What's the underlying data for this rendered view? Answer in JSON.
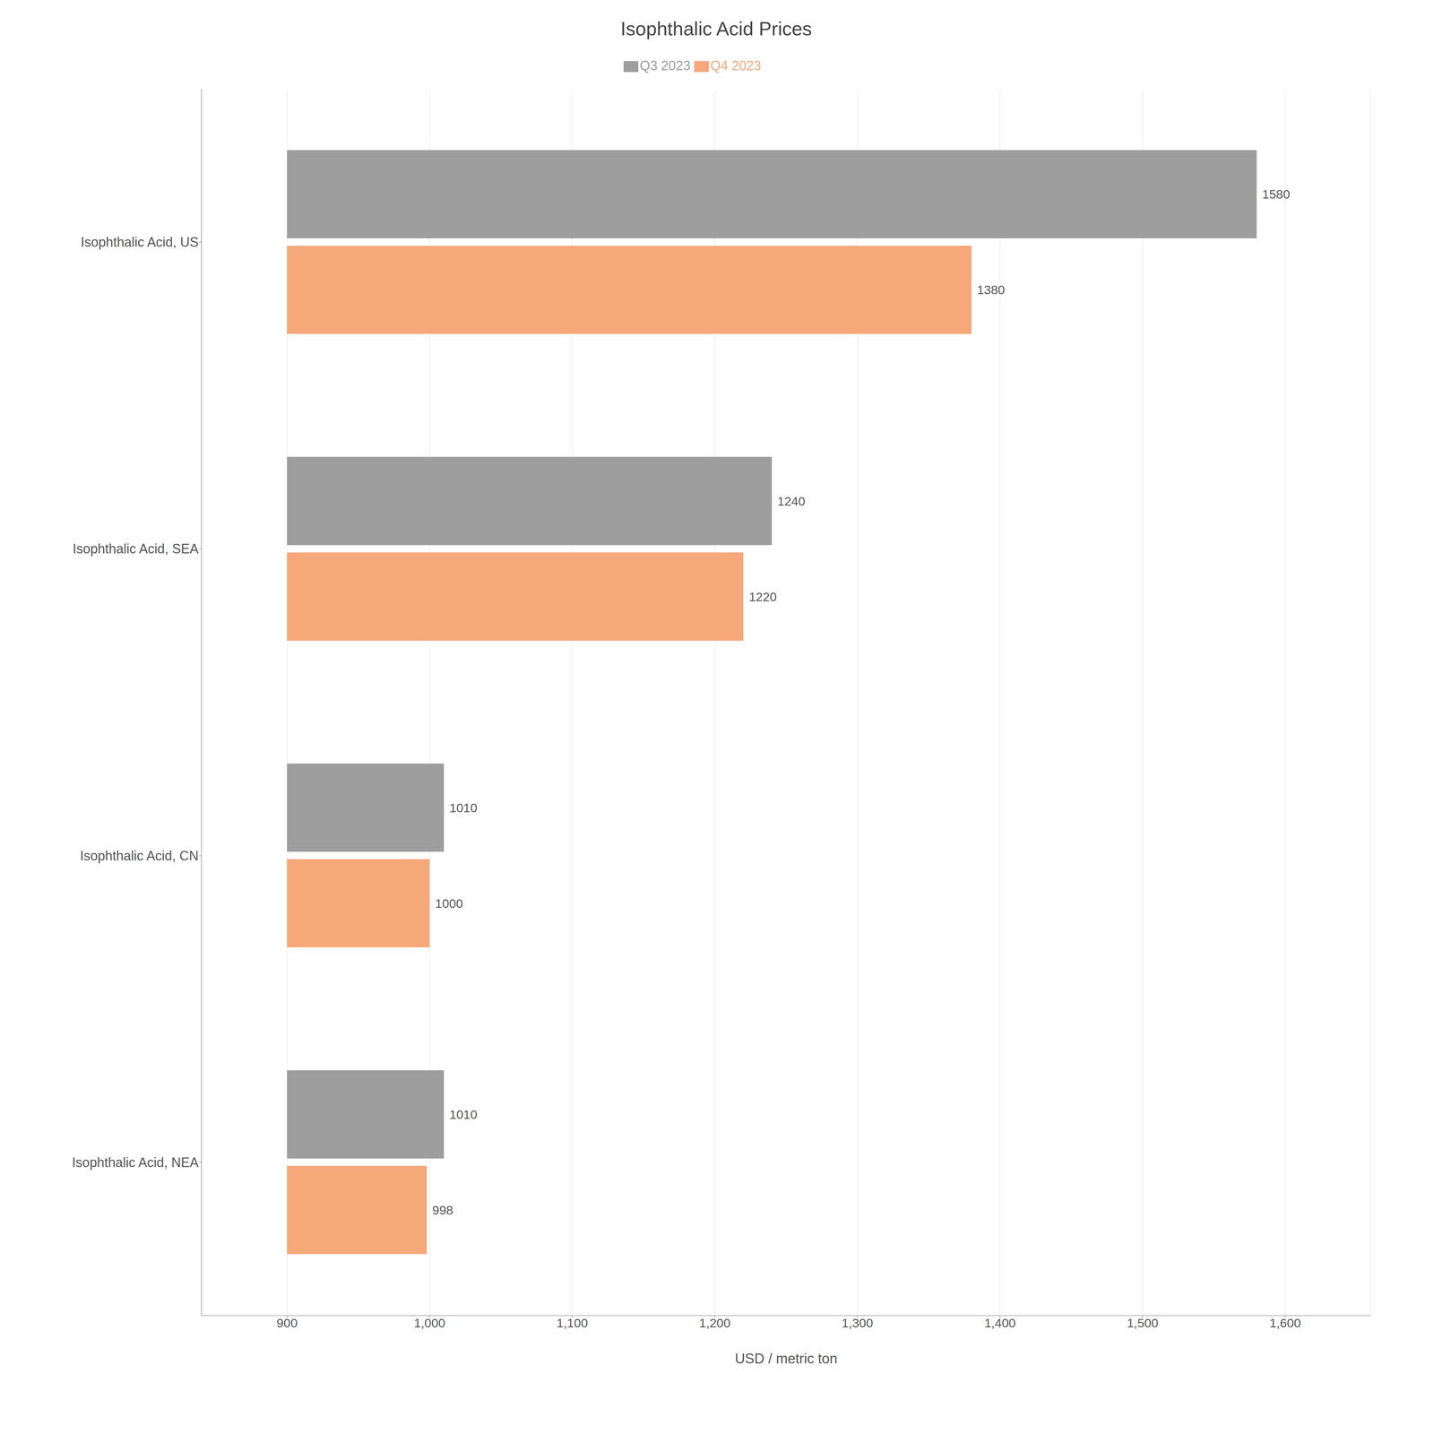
{
  "chart_data": {
    "type": "bar",
    "title": "Isophthalic Acid Prices",
    "xlabel": "USD / metric ton",
    "orientation": "horizontal",
    "categories": [
      "Isophthalic Acid, US",
      "Isophthalic Acid, SEA",
      "Isophthalic Acid, CN",
      "Isophthalic Acid, NEA"
    ],
    "bar_base": 900,
    "series": [
      {
        "name": "Q3 2023",
        "color": "#9E9E9E",
        "values": [
          1580,
          1240,
          1010,
          1010
        ]
      },
      {
        "name": "Q4 2023",
        "color": "#F5A87A",
        "values": [
          1380,
          1220,
          1000,
          998
        ]
      }
    ],
    "xlim": [
      840,
      1660
    ],
    "xticks": [
      900,
      {
        "value": 1000,
        "label": "1,000"
      },
      {
        "value": 1100,
        "label": "1,100"
      },
      {
        "value": 1200,
        "label": "1,200"
      },
      {
        "value": 1300,
        "label": "1,300"
      },
      {
        "value": 1400,
        "label": "1,400"
      },
      {
        "value": 1500,
        "label": "1,500"
      },
      {
        "value": 1600,
        "label": "1,600"
      }
    ],
    "grid": true,
    "legend": "top",
    "data_labels": true
  }
}
